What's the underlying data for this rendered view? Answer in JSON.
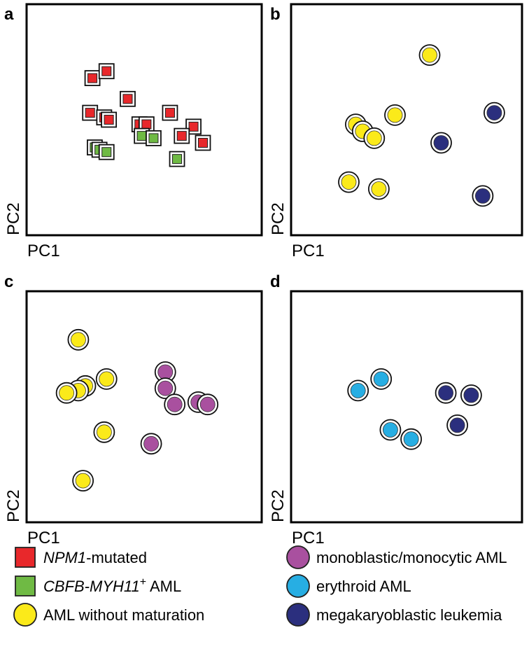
{
  "chart_data": [
    {
      "type": "scatter",
      "panel": "a",
      "xlabel": "PC1",
      "ylabel": "PC2",
      "xlim": [
        0,
        100
      ],
      "ylim": [
        0,
        100
      ],
      "series": [
        {
          "name": "NPM1-mutated",
          "marker": "square",
          "color": "#e8282b",
          "points": [
            [
              28,
              68
            ],
            [
              34,
              71
            ],
            [
              43,
              59
            ],
            [
              27,
              53
            ],
            [
              33,
              51
            ],
            [
              35,
              50
            ],
            [
              61,
              53
            ],
            [
              48,
              48
            ],
            [
              51,
              48
            ],
            [
              71,
              47
            ],
            [
              66,
              43
            ],
            [
              75,
              40
            ]
          ]
        },
        {
          "name": "CBFB-MYH11+ AML",
          "marker": "square",
          "color": "#6fba44",
          "points": [
            [
              29,
              38
            ],
            [
              31,
              37
            ],
            [
              34,
              36
            ],
            [
              49,
              43
            ],
            [
              54,
              42
            ],
            [
              64,
              33
            ]
          ]
        }
      ]
    },
    {
      "type": "scatter",
      "panel": "b",
      "xlabel": "PC1",
      "ylabel": "PC2",
      "xlim": [
        0,
        100
      ],
      "ylim": [
        0,
        100
      ],
      "series": [
        {
          "name": "AML without maturation",
          "marker": "circle",
          "color": "#fbea1a",
          "points": [
            [
              60,
              78
            ],
            [
              45,
              52
            ],
            [
              28,
              48
            ],
            [
              31,
              45
            ],
            [
              36,
              42
            ],
            [
              25,
              23
            ],
            [
              38,
              20
            ]
          ]
        },
        {
          "name": "megakaryoblastic leukemia",
          "marker": "circle",
          "color": "#2b2f7e",
          "points": [
            [
              88,
              53
            ],
            [
              65,
              40
            ],
            [
              83,
              17
            ]
          ]
        }
      ]
    },
    {
      "type": "scatter",
      "panel": "c",
      "xlabel": "PC1",
      "ylabel": "PC2",
      "xlim": [
        0,
        100
      ],
      "ylim": [
        0,
        100
      ],
      "series": [
        {
          "name": "AML without maturation",
          "marker": "circle",
          "color": "#fbea1a",
          "points": [
            [
              22,
              79
            ],
            [
              34,
              62
            ],
            [
              25,
              59
            ],
            [
              22,
              57
            ],
            [
              17,
              56
            ],
            [
              33,
              39
            ],
            [
              24,
              18
            ]
          ]
        },
        {
          "name": "monoblastic/monocytic AML",
          "marker": "circle",
          "color": "#a9509f",
          "points": [
            [
              59,
              65
            ],
            [
              59,
              58
            ],
            [
              63,
              51
            ],
            [
              73,
              52
            ],
            [
              77,
              51
            ],
            [
              53,
              34
            ]
          ]
        }
      ]
    },
    {
      "type": "scatter",
      "panel": "d",
      "xlabel": "PC1",
      "ylabel": "PC2",
      "xlim": [
        0,
        100
      ],
      "ylim": [
        0,
        100
      ],
      "series": [
        {
          "name": "erythroid AML",
          "marker": "circle",
          "color": "#27aee3",
          "points": [
            [
              39,
              62
            ],
            [
              29,
              57
            ],
            [
              43,
              40
            ],
            [
              52,
              36
            ]
          ]
        },
        {
          "name": "megakaryoblastic leukemia",
          "marker": "circle",
          "color": "#2b2f7e",
          "points": [
            [
              67,
              56
            ],
            [
              78,
              55
            ],
            [
              72,
              42
            ]
          ]
        }
      ]
    }
  ],
  "panel_letters": [
    "a",
    "b",
    "c",
    "d"
  ],
  "legend": [
    {
      "name": "NPM1-mutated",
      "italic": "NPM1",
      "rest": "-mutated",
      "marker": "square",
      "color": "#e8282b"
    },
    {
      "name": "CBFB-MYH11+ AML",
      "italic": "CBFB-MYH11",
      "sup": "+",
      "rest": " AML",
      "marker": "square",
      "color": "#6fba44"
    },
    {
      "name": "AML without maturation",
      "plain": "AML without maturation",
      "marker": "circle",
      "color": "#fbea1a"
    },
    {
      "name": "monoblastic/monocytic AML",
      "plain": "monoblastic/monocytic AML",
      "marker": "circle",
      "color": "#a9509f"
    },
    {
      "name": "erythroid AML",
      "plain": "erythroid AML",
      "marker": "circle",
      "color": "#27aee3"
    },
    {
      "name": "megakaryoblastic leukemia",
      "plain": "megakaryoblastic leukemia",
      "marker": "circle",
      "color": "#2b2f7e"
    }
  ]
}
